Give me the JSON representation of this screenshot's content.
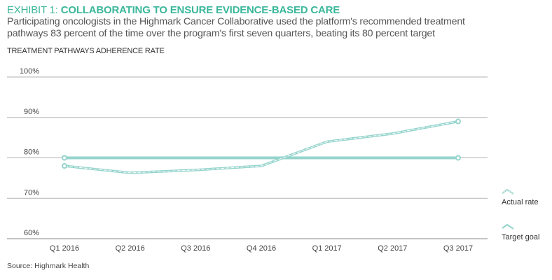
{
  "header": {
    "exhibit_label": "EXHIBIT 1: ",
    "exhibit_title": "COLLABORATING TO ENSURE EVIDENCE-BASED CARE",
    "subtitle_line1": "Participating oncologists in the Highmark Cancer Collaborative used the platform's recommended treatment",
    "subtitle_line2": "pathways 83 percent of the time over the program's first seven quarters, beating its 80 percent target"
  },
  "source": "Source: Highmark Health",
  "colors": {
    "accent": "#3bb79a",
    "series": "#95d4cc",
    "grid": "#b3b3b3"
  },
  "chart_data": {
    "type": "line",
    "title": "COLLABORATING TO ENSURE EVIDENCE-BASED CARE",
    "ylabel": "TREATMENT PATHWAYS ADHERENCE RATE",
    "xlabel": "",
    "categories": [
      "Q1 2016",
      "Q2 2016",
      "Q3 2016",
      "Q4 2016",
      "Q1 2017",
      "Q2 2017",
      "Q3 2017"
    ],
    "yticks": [
      60,
      70,
      80,
      90,
      100
    ],
    "ytick_labels": [
      "60%",
      "70%",
      "80%",
      "90%",
      "100%"
    ],
    "ylim": [
      60,
      100
    ],
    "grid": true,
    "legend_position": "right",
    "series": [
      {
        "name": "Actual rate",
        "style": "dashed-double",
        "values": [
          78,
          76.3,
          77,
          78,
          84,
          86,
          89
        ]
      },
      {
        "name": "Target goal",
        "style": "solid",
        "values": [
          80,
          80,
          80,
          80,
          80,
          80,
          80
        ]
      }
    ]
  }
}
